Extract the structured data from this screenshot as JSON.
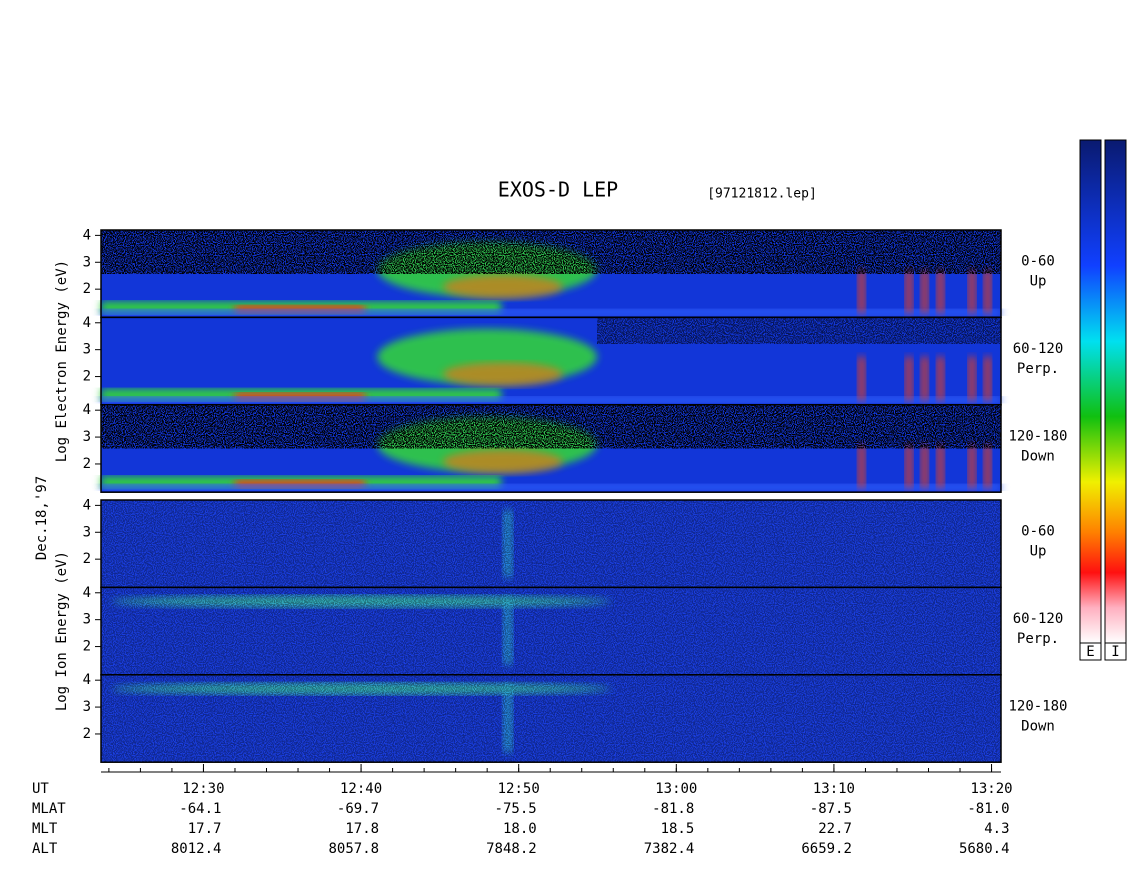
{
  "title": "EXOS-D LEP",
  "file": "[97121812.lep]",
  "date": "Dec.18,'97",
  "x_axis": {
    "xlim": [
      743.5,
      800.6
    ],
    "minor_step": 2,
    "ticks": [
      {
        "value": 750,
        "label": "12:30"
      },
      {
        "value": 760,
        "label": "12:40"
      },
      {
        "value": 770,
        "label": "12:50"
      },
      {
        "value": 780,
        "label": "13:00"
      },
      {
        "value": 790,
        "label": "13:10"
      },
      {
        "value": 800,
        "label": "13:20"
      }
    ]
  },
  "ylim": [
    0.95,
    4.2
  ],
  "yticks": [
    2,
    3,
    4
  ],
  "groups": [
    {
      "ylabel": "Log  Electron  Energy (eV)",
      "panels": [
        {
          "angle": "0-60",
          "dir": "Up"
        },
        {
          "angle": "60-120",
          "dir": "Perp."
        },
        {
          "angle": "120-180",
          "dir": "Down"
        }
      ]
    },
    {
      "ylabel": "Log  Ion  Energy (eV)",
      "panels": [
        {
          "angle": "0-60",
          "dir": "Up"
        },
        {
          "angle": "60-120",
          "dir": "Perp."
        },
        {
          "angle": "120-180",
          "dir": "Down"
        }
      ]
    }
  ],
  "table": {
    "row_labels": [
      "UT",
      "MLAT",
      "MLT",
      "ALT"
    ],
    "rows": [
      [
        "-64.1",
        "-69.7",
        "-75.5",
        "-81.8",
        "-87.5",
        "-81.0"
      ],
      [
        "17.7",
        "17.8",
        "18.0",
        "18.5",
        "22.7",
        "4.3"
      ],
      [
        "8012.4",
        "8057.8",
        "7848.2",
        "7382.4",
        "6659.2",
        "5680.4"
      ]
    ]
  },
  "colorbars": [
    "E",
    "I"
  ]
}
